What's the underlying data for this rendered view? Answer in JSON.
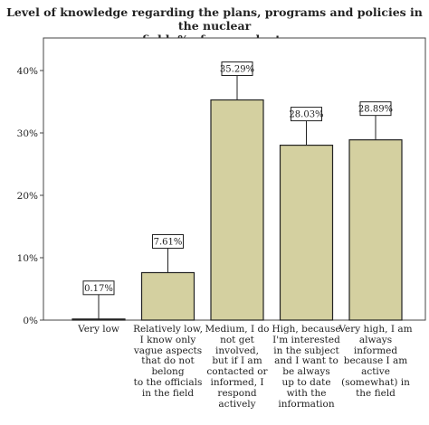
{
  "chart_data": {
    "type": "bar",
    "title": "Level of knowledge regarding the plans, programs and policies in the nuclear\nfield: % of respondents",
    "xlabel": "",
    "ylabel": "",
    "categories": [
      "Very low",
      "Relatively low,\nI know only\nvague aspects\nthat do not\nbelong\nto the officials\nin the field",
      "Medium, I do\nnot get involved,\nbut if I am\ncontacted or\ninformed, I\nrespond actively",
      "High, because\nI'm interested\nin the subject\nand I want to\nbe always\nup to date\nwith the\ninformation",
      "Very high, I am\nalways informed\nbecause I am\nactive\n(somewhat) in\nthe field"
    ],
    "values": [
      0.17,
      7.61,
      35.29,
      28.03,
      28.89
    ],
    "data_labels": [
      "0.17%",
      "7.61%",
      "35.29%",
      "28.03%",
      "28.89%"
    ],
    "ylim": [
      0,
      40
    ],
    "yticks": [
      "0%",
      "10%",
      "20%",
      "30%",
      "40%"
    ],
    "grid": false,
    "legend": "none",
    "bar_color": "#d4d0a0",
    "bar_edge_color": "#222222"
  }
}
